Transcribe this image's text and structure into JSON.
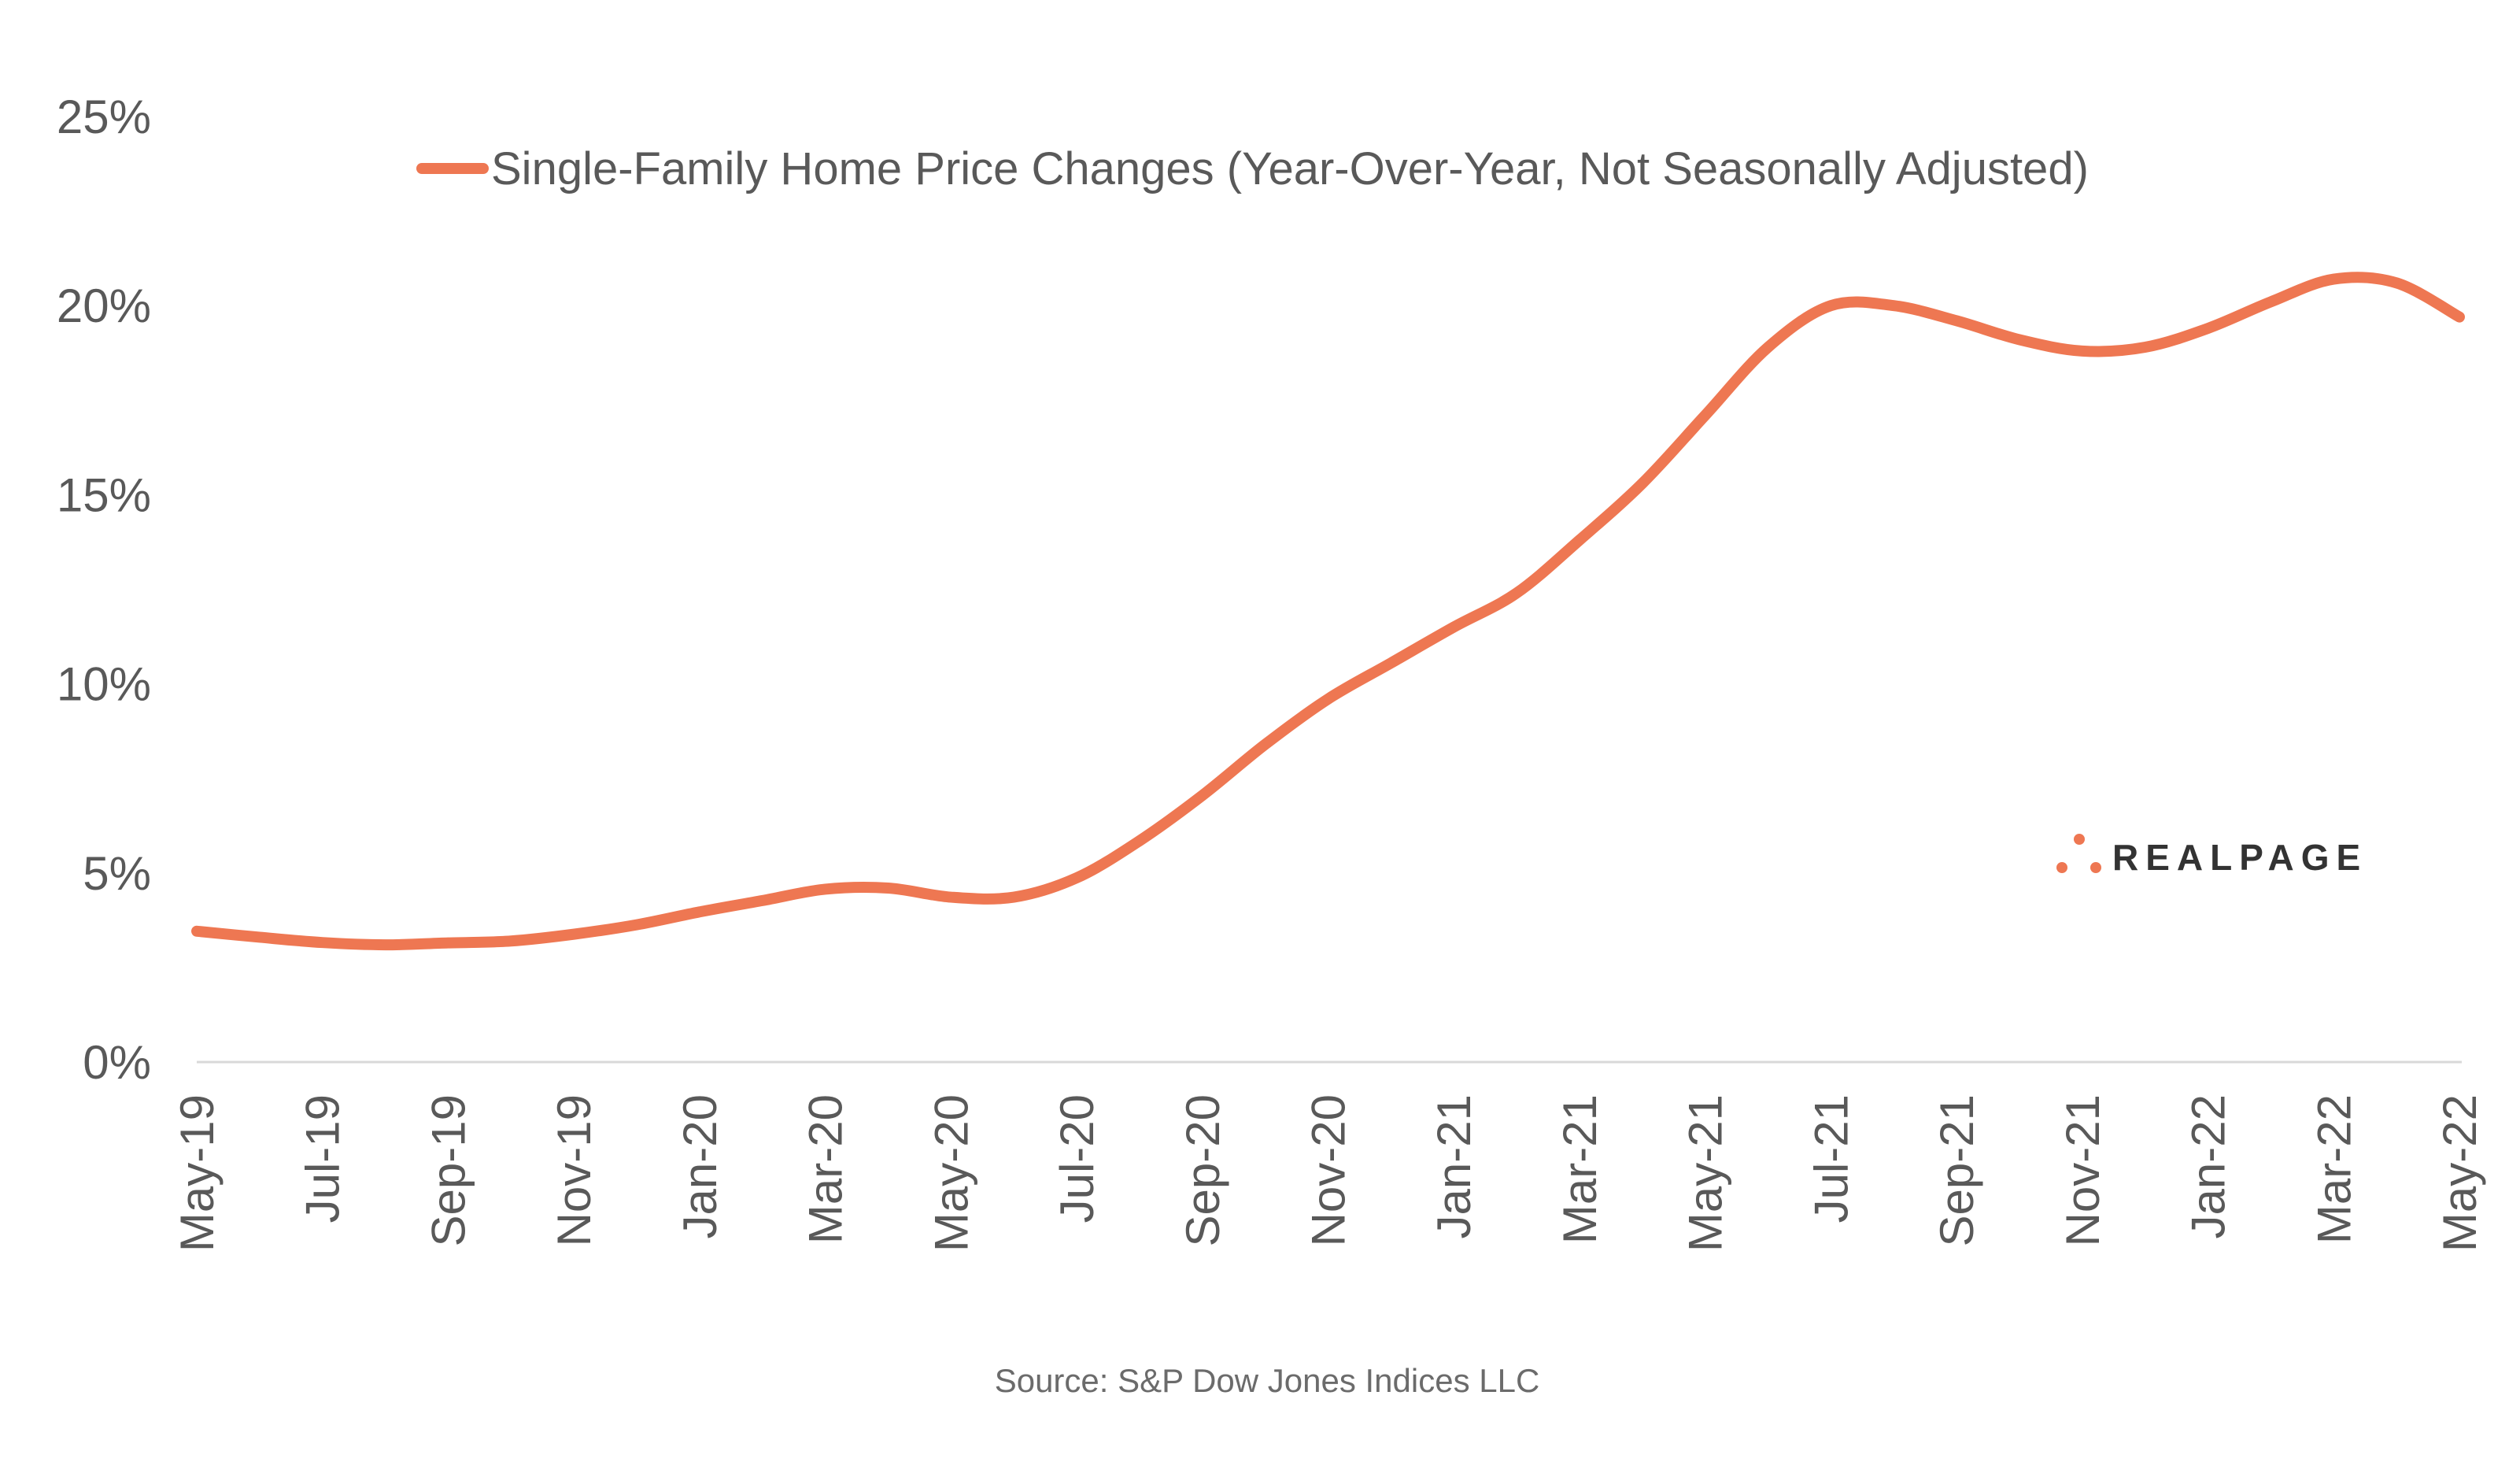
{
  "chart_data": {
    "type": "line",
    "title": "",
    "xlabel": "",
    "ylabel": "",
    "ylim": [
      0,
      25
    ],
    "yticks": [
      0,
      5,
      10,
      15,
      20,
      25
    ],
    "ytick_labels": [
      "0%",
      "5%",
      "10%",
      "15%",
      "20%",
      "25%"
    ],
    "grid": false,
    "legend_position": "top",
    "x": [
      "May-19",
      "Jun-19",
      "Jul-19",
      "Aug-19",
      "Sep-19",
      "Oct-19",
      "Nov-19",
      "Dec-19",
      "Jan-20",
      "Feb-20",
      "Mar-20",
      "Apr-20",
      "May-20",
      "Jun-20",
      "Jul-20",
      "Aug-20",
      "Sep-20",
      "Oct-20",
      "Nov-20",
      "Dec-20",
      "Jan-21",
      "Feb-21",
      "Mar-21",
      "Apr-21",
      "May-21",
      "Jun-21",
      "Jul-21",
      "Aug-21",
      "Sep-21",
      "Oct-21",
      "Nov-21",
      "Dec-21",
      "Jan-22",
      "Feb-22",
      "Mar-22",
      "Apr-22",
      "May-22"
    ],
    "xtick_labels": [
      "May-19",
      "Jul-19",
      "Sep-19",
      "Nov-19",
      "Jan-20",
      "Mar-20",
      "May-20",
      "Jul-20",
      "Sep-20",
      "Nov-20",
      "Jan-21",
      "Mar-21",
      "May-21",
      "Jul-21",
      "Sep-21",
      "Nov-21",
      "Jan-22",
      "Mar-22",
      "May-22"
    ],
    "series": [
      {
        "name": "Single-Family Home Price Changes (Year-Over-Year, Not Seasonally Adjusted)",
        "color": "#EE7752",
        "values": [
          3.46,
          3.3,
          3.16,
          3.1,
          3.15,
          3.2,
          3.38,
          3.63,
          3.97,
          4.27,
          4.57,
          4.6,
          4.36,
          4.36,
          4.87,
          5.85,
          7.05,
          8.4,
          9.6,
          10.55,
          11.5,
          12.4,
          13.8,
          15.3,
          17.1,
          18.9,
          20.0,
          20.0,
          19.6,
          19.1,
          18.8,
          18.9,
          19.4,
          20.1,
          20.7,
          20.6,
          19.7
        ]
      }
    ],
    "source": "Source: S&P Dow Jones Indices LLC"
  },
  "logo": {
    "text": "REALPAGE",
    "color": "#EE7752"
  }
}
